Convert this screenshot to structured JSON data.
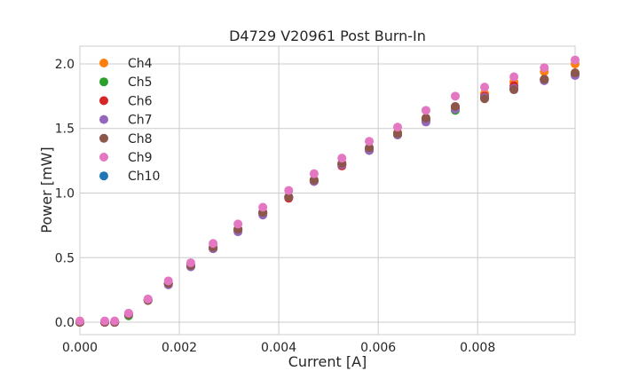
{
  "chart_data": {
    "type": "scatter",
    "title": "D4729 V20961 Post Burn-In",
    "xlabel": "Current [A]",
    "ylabel": "Power [mW]",
    "xlim": [
      0,
      0.00996
    ],
    "ylim": [
      -0.096,
      2.137
    ],
    "grid": true,
    "legend_placement": "top-left",
    "xticks": [
      0,
      0.002,
      0.004,
      0.006,
      0.008
    ],
    "xtick_labels": [
      "0.000",
      "0.002",
      "0.004",
      "0.006",
      "0.008"
    ],
    "yticks": [
      0,
      0.5,
      1.0,
      1.5,
      2.0
    ],
    "ytick_labels": [
      "0.0",
      "0.5",
      "1.0",
      "1.5",
      "2.0"
    ],
    "x": [
      0,
      0.0005,
      0.0007,
      0.00098,
      0.00137,
      0.00178,
      0.00223,
      0.00268,
      0.00318,
      0.00368,
      0.0042,
      0.00471,
      0.00527,
      0.00582,
      0.00639,
      0.00696,
      0.00755,
      0.00814,
      0.00873,
      0.00934,
      0.00996
    ],
    "series": [
      {
        "name": "Ch4",
        "color": "#ff7f0e",
        "values": [
          0,
          0,
          0,
          0.06,
          0.17,
          0.3,
          0.44,
          0.58,
          0.72,
          0.85,
          0.97,
          1.1,
          1.23,
          1.35,
          1.47,
          1.58,
          1.66,
          1.77,
          1.86,
          1.94,
          2.0
        ]
      },
      {
        "name": "Ch5",
        "color": "#2ca02c",
        "values": [
          0,
          0,
          0,
          0.05,
          0.17,
          0.3,
          0.43,
          0.57,
          0.71,
          0.84,
          0.97,
          1.1,
          1.22,
          1.34,
          1.45,
          1.56,
          1.64,
          1.74,
          1.81,
          1.88,
          1.92
        ]
      },
      {
        "name": "Ch6",
        "color": "#d62728",
        "values": [
          0,
          0,
          0,
          0.06,
          0.17,
          0.3,
          0.44,
          0.57,
          0.71,
          0.84,
          0.96,
          1.09,
          1.21,
          1.33,
          1.46,
          1.57,
          1.66,
          1.75,
          1.83,
          1.88,
          1.93
        ]
      },
      {
        "name": "Ch7",
        "color": "#9467bd",
        "values": [
          0,
          0,
          0,
          0.06,
          0.17,
          0.29,
          0.43,
          0.57,
          0.7,
          0.83,
          0.97,
          1.09,
          1.22,
          1.33,
          1.45,
          1.55,
          1.65,
          1.74,
          1.81,
          1.87,
          1.91
        ]
      },
      {
        "name": "Ch8",
        "color": "#8c564b",
        "values": [
          0,
          0,
          0,
          0.06,
          0.17,
          0.3,
          0.44,
          0.58,
          0.72,
          0.85,
          0.97,
          1.1,
          1.23,
          1.35,
          1.46,
          1.58,
          1.67,
          1.73,
          1.8,
          1.88,
          1.93
        ]
      },
      {
        "name": "Ch9",
        "color": "#e377c2",
        "values": [
          0.01,
          0.01,
          0.01,
          0.07,
          0.18,
          0.32,
          0.46,
          0.61,
          0.76,
          0.89,
          1.02,
          1.15,
          1.27,
          1.4,
          1.51,
          1.64,
          1.75,
          1.82,
          1.9,
          1.97,
          2.03
        ]
      },
      {
        "name": "Ch10",
        "color": "#1f77b4",
        "values": [
          0,
          0,
          0,
          0.06,
          0.17,
          0.3,
          0.44,
          0.58,
          0.72,
          0.85,
          0.97,
          1.1,
          1.22,
          1.34,
          1.46,
          1.56,
          1.66,
          1.75,
          1.82,
          1.88,
          1.92
        ]
      }
    ]
  }
}
